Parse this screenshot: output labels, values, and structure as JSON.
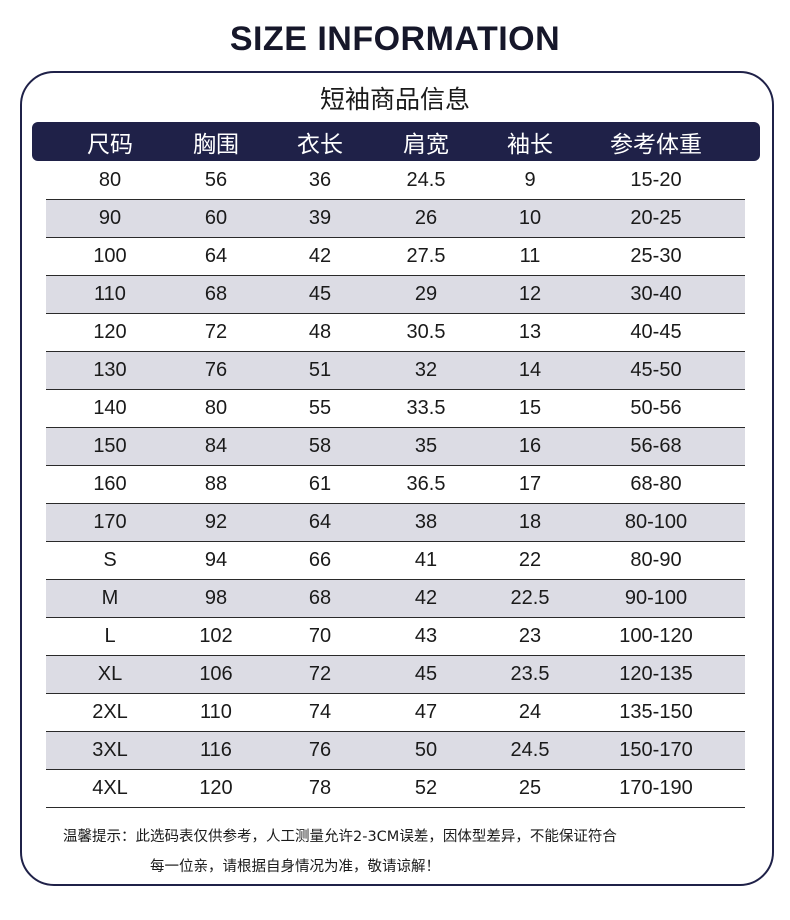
{
  "title": "SIZE INFORMATION",
  "subtitle": "短袖商品信息",
  "colors": {
    "navy": "#1f2148",
    "stripe": "#dcdce4"
  },
  "headers": [
    "尺码",
    "胸围",
    "衣长",
    "肩宽",
    "袖长",
    "参考体重"
  ],
  "rows": [
    [
      "80",
      "56",
      "36",
      "24.5",
      "9",
      "15-20"
    ],
    [
      "90",
      "60",
      "39",
      "26",
      "10",
      "20-25"
    ],
    [
      "100",
      "64",
      "42",
      "27.5",
      "11",
      "25-30"
    ],
    [
      "110",
      "68",
      "45",
      "29",
      "12",
      "30-40"
    ],
    [
      "120",
      "72",
      "48",
      "30.5",
      "13",
      "40-45"
    ],
    [
      "130",
      "76",
      "51",
      "32",
      "14",
      "45-50"
    ],
    [
      "140",
      "80",
      "55",
      "33.5",
      "15",
      "50-56"
    ],
    [
      "150",
      "84",
      "58",
      "35",
      "16",
      "56-68"
    ],
    [
      "160",
      "88",
      "61",
      "36.5",
      "17",
      "68-80"
    ],
    [
      "170",
      "92",
      "64",
      "38",
      "18",
      "80-100"
    ],
    [
      "S",
      "94",
      "66",
      "41",
      "22",
      "80-90"
    ],
    [
      "M",
      "98",
      "68",
      "42",
      "22.5",
      "90-100"
    ],
    [
      "L",
      "102",
      "70",
      "43",
      "23",
      "100-120"
    ],
    [
      "XL",
      "106",
      "72",
      "45",
      "23.5",
      "120-135"
    ],
    [
      "2XL",
      "110",
      "74",
      "47",
      "24",
      "135-150"
    ],
    [
      "3XL",
      "116",
      "76",
      "50",
      "24.5",
      "150-170"
    ],
    [
      "4XL",
      "120",
      "78",
      "52",
      "25",
      "170-190"
    ]
  ],
  "note": {
    "line1": "温馨提示：此选码表仅供参考，人工测量允许2-3CM误差，因体型差异，不能保证符合",
    "line2": "每一位亲，请根据自身情况为准，敬请谅解！"
  }
}
